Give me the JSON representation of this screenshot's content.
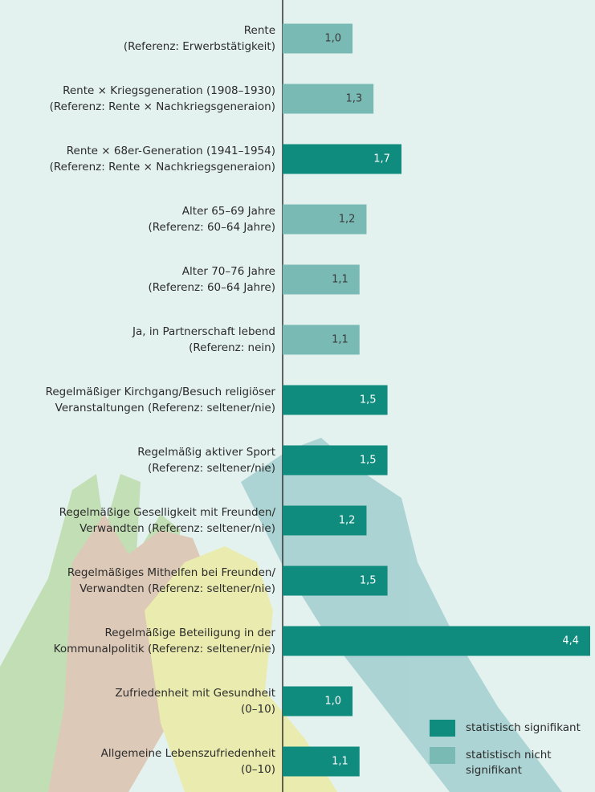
{
  "chart_data": {
    "type": "bar",
    "orientation": "horizontal",
    "categories": [
      [
        "Rente",
        "(Referenz: Erwerbstätigkeit)"
      ],
      [
        "Rente × Kriegsgeneration (1908–1930)",
        "(Referenz: Rente × Nachkriegsgeneraion)"
      ],
      [
        "Rente × 68er-Generation  (1941–1954)",
        "(Referenz: Rente × Nachkriegsgeneraion)"
      ],
      [
        "Alter 65–69 Jahre",
        "(Referenz: 60–64 Jahre)"
      ],
      [
        "Alter 70–76 Jahre",
        "(Referenz: 60–64 Jahre)"
      ],
      [
        "Ja, in Partnerschaft lebend",
        "(Referenz: nein)"
      ],
      [
        "Regelmäßiger Kirchgang/Besuch religiöser",
        "Veranstaltungen (Referenz: seltener/nie)"
      ],
      [
        "Regelmäßig aktiver Sport",
        "(Referenz: seltener/nie)"
      ],
      [
        "Regelmäßige Geselligkeit mit Freunden/",
        "Verwandten (Referenz: seltener/nie)"
      ],
      [
        "Regelmäßiges Mithelfen bei Freunden/",
        "Verwandten (Referenz: seltener/nie)"
      ],
      [
        "Regelmäßige Beteiligung in der",
        "Kommunalpolitik (Referenz: seltener/nie)"
      ],
      [
        "Zufriedenheit mit Gesundheit",
        "(0–10)"
      ],
      [
        "Allgemeine Lebenszufriedenheit",
        "(0–10)"
      ]
    ],
    "values": [
      1.0,
      1.3,
      1.7,
      1.2,
      1.1,
      1.1,
      1.5,
      1.5,
      1.2,
      1.5,
      4.4,
      1.0,
      1.1
    ],
    "value_labels": [
      "1,0",
      "1,3",
      "1,7",
      "1,2",
      "1,1",
      "1,1",
      "1,5",
      "1,5",
      "1,2",
      "1,5",
      "4,4",
      "1,0",
      "1,1"
    ],
    "colors": [
      "#79bab5",
      "#79bab5",
      "#0f8c7e",
      "#79bab5",
      "#79bab5",
      "#79bab5",
      "#0f8c7e",
      "#0f8c7e",
      "#0f8c7e",
      "#0f8c7e",
      "#0f8c7e",
      "#0f8c7e",
      "#0f8c7e"
    ],
    "legend": [
      {
        "name": "statistisch signifikant",
        "color": "#0f8c7e"
      },
      {
        "name": [
          "statistisch nicht",
          "signifikant"
        ],
        "color": "#79bab5"
      }
    ]
  }
}
